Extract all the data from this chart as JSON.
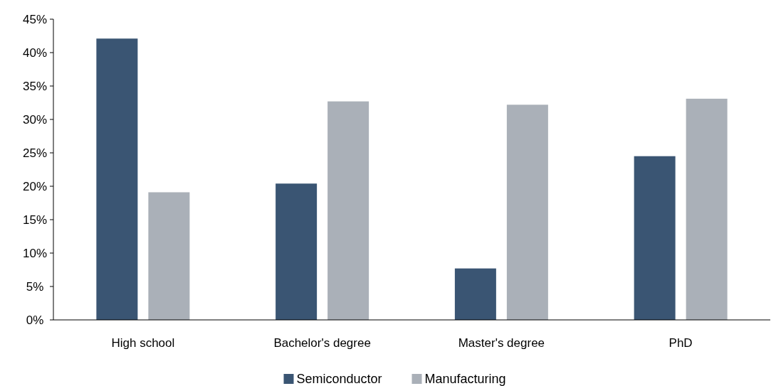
{
  "chart_data": {
    "type": "bar",
    "categories": [
      "High school",
      "Bachelor's degree",
      "Master's degree",
      "PhD"
    ],
    "series": [
      {
        "name": "Semiconductor",
        "color": "#3a5573",
        "values": [
          42.1,
          20.4,
          7.7,
          24.5
        ]
      },
      {
        "name": "Manufacturing",
        "color": "#aab0b8",
        "values": [
          19.1,
          32.7,
          32.2,
          33.1
        ]
      }
    ],
    "ylim": [
      0,
      45
    ],
    "yticks": [
      {
        "value": 0,
        "label": "0%"
      },
      {
        "value": 5,
        "label": "5%"
      },
      {
        "value": 10,
        "label": "10%"
      },
      {
        "value": 15,
        "label": "15%"
      },
      {
        "value": 20,
        "label": "20%"
      },
      {
        "value": 25,
        "label": "25%"
      },
      {
        "value": 30,
        "label": "30%"
      },
      {
        "value": 35,
        "label": "35%"
      },
      {
        "value": 40,
        "label": "40%"
      },
      {
        "value": 45,
        "label": "45%"
      }
    ],
    "grid": false,
    "legend": "bottom"
  }
}
